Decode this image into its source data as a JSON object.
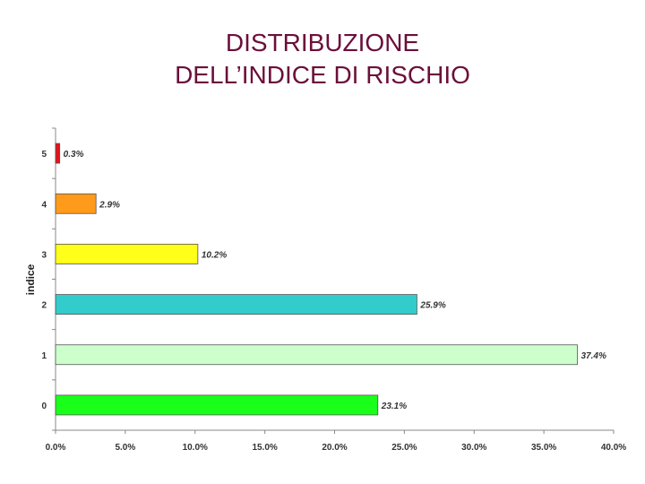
{
  "chart_data": {
    "type": "bar",
    "orientation": "horizontal",
    "title_lines": [
      "DISTRIBUZIONE",
      "DELL’INDICE DI RISCHIO"
    ],
    "ylabel": "indice",
    "xlabel": "",
    "categories": [
      "5",
      "4",
      "3",
      "2",
      "1",
      "0"
    ],
    "values": [
      0.3,
      2.9,
      10.2,
      25.9,
      37.4,
      23.1
    ],
    "data_labels": [
      "0.3%",
      "2.9%",
      "10.2%",
      "25.9%",
      "37.4%",
      "23.1%"
    ],
    "bar_colors": [
      "#e8101a",
      "#ff9a1a",
      "#ffff1a",
      "#33cccc",
      "#ccffcc",
      "#1aff1a"
    ],
    "xlim": [
      0,
      40
    ],
    "x_ticks": [
      "0.0%",
      "5.0%",
      "10.0%",
      "15.0%",
      "20.0%",
      "25.0%",
      "30.0%",
      "35.0%",
      "40.0%"
    ],
    "grid": false,
    "legend": "none"
  }
}
